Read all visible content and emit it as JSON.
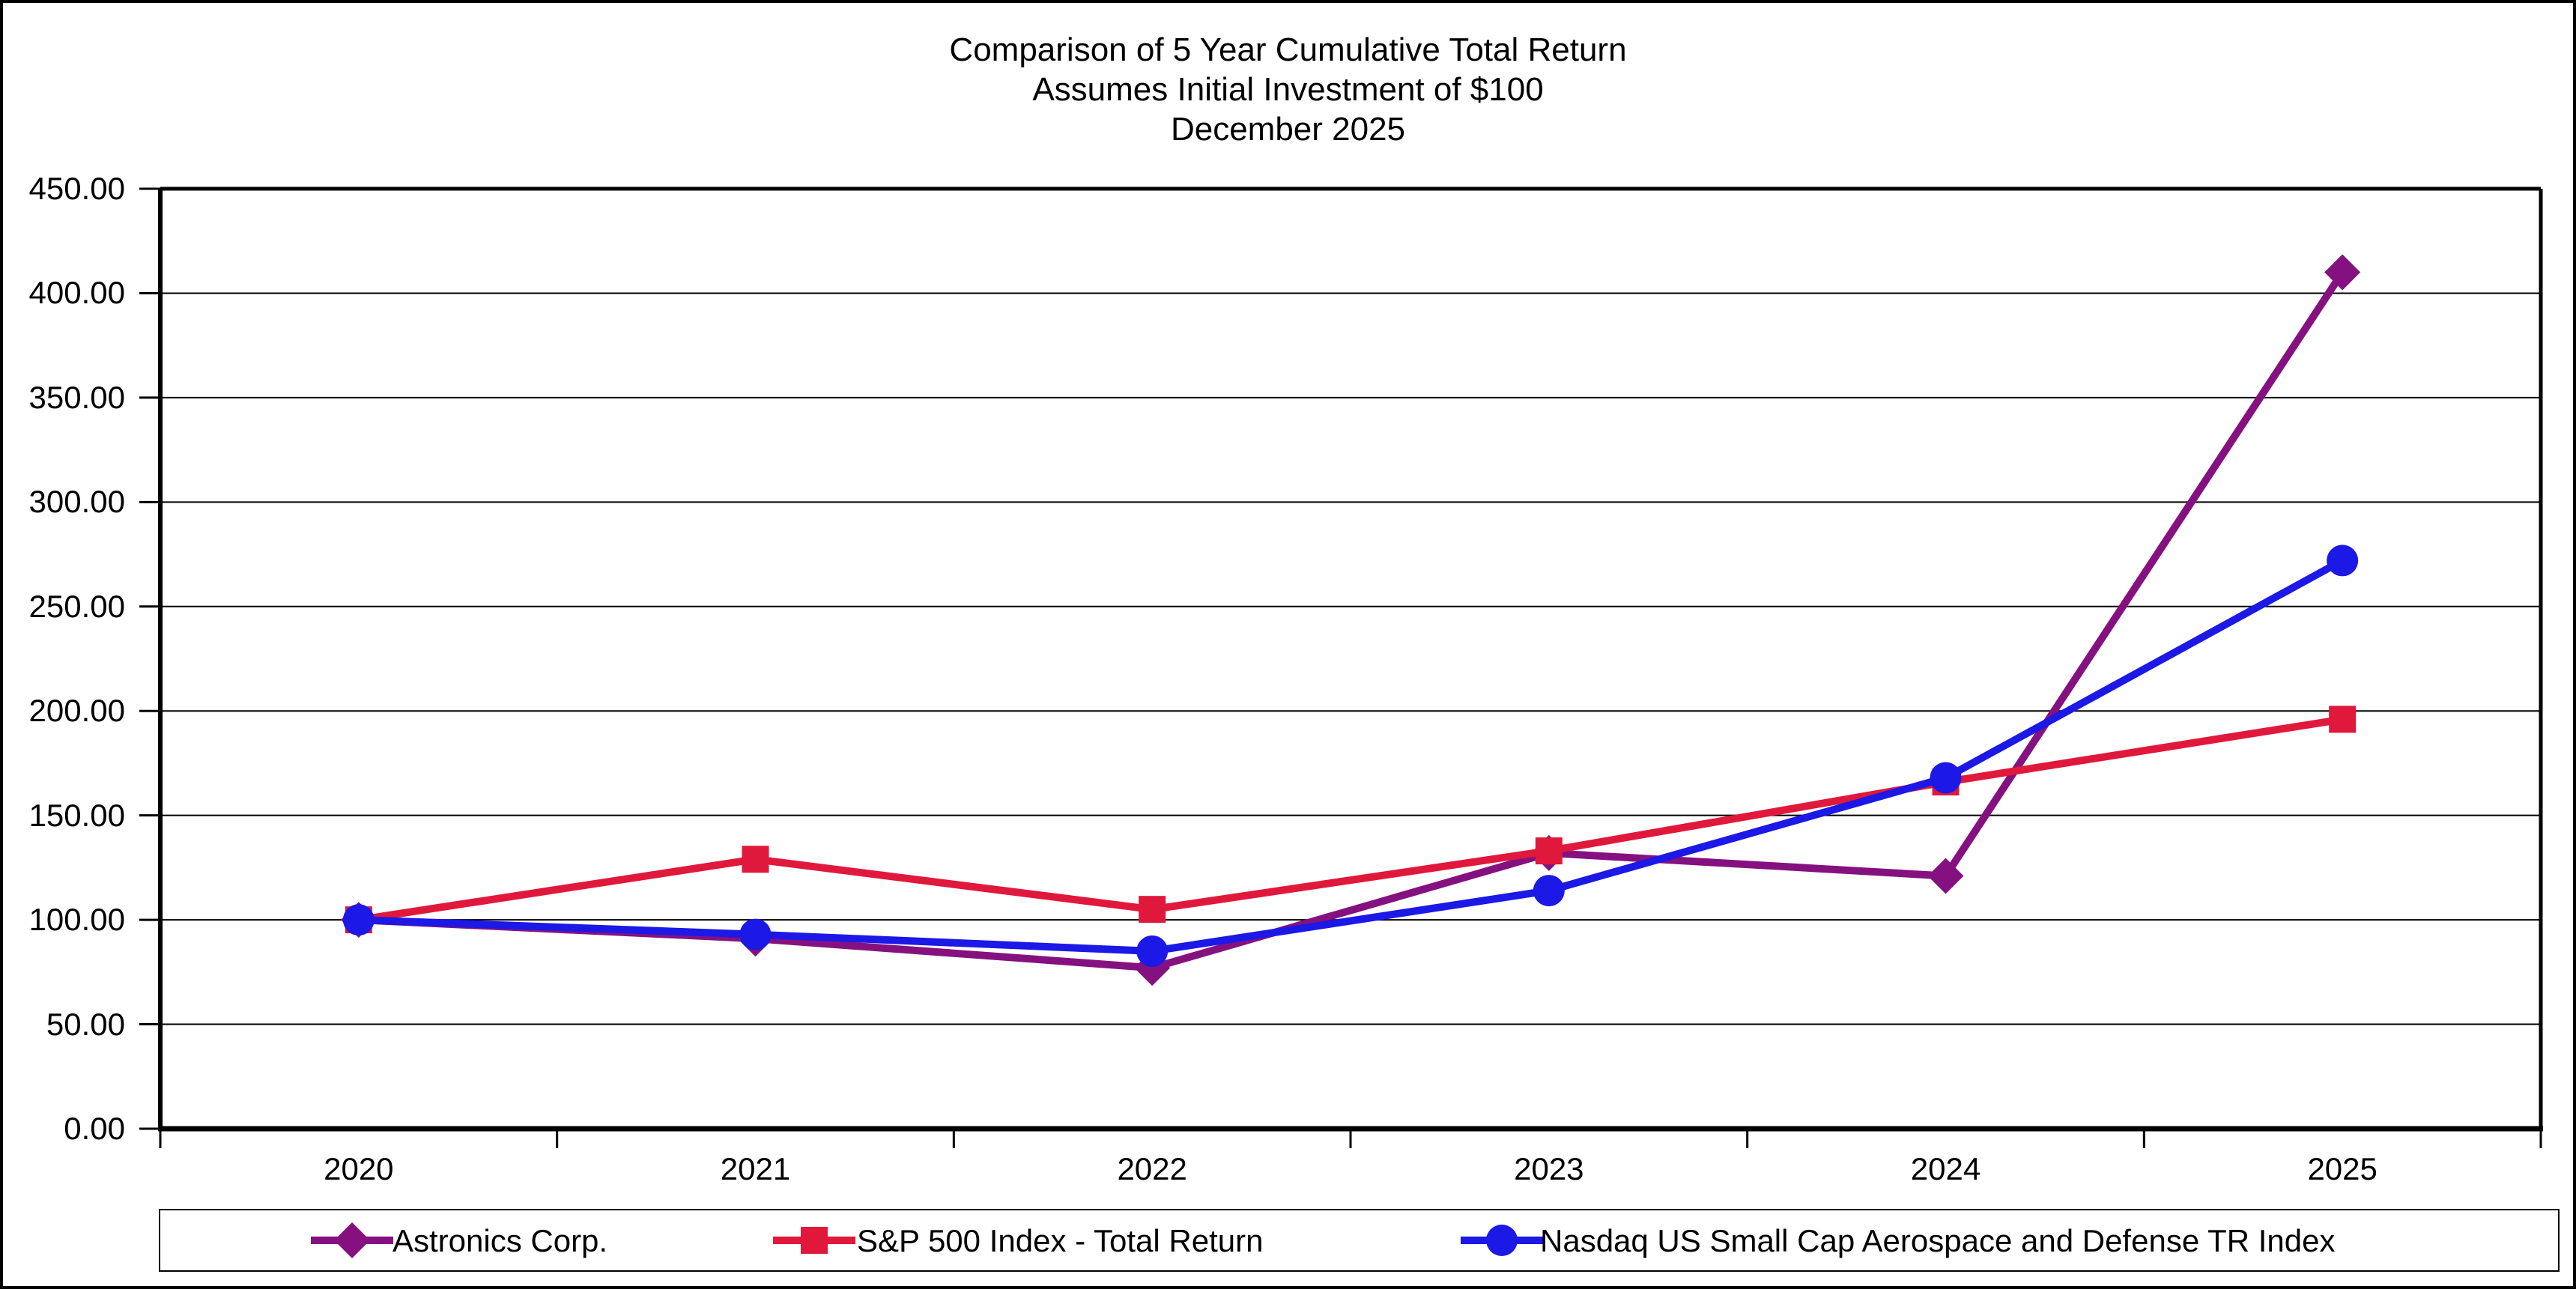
{
  "chart_data": {
    "type": "line",
    "title_lines": [
      "Comparison of 5 Year Cumulative Total Return",
      "Assumes Initial Investment of $100",
      "December 2025"
    ],
    "x_categories": [
      "2020",
      "2021",
      "2022",
      "2023",
      "2024",
      "2025"
    ],
    "series": [
      {
        "name": "Astronics Corp.",
        "marker": "diamond",
        "color": "#851180",
        "values": [
          100.0,
          91.0,
          77.0,
          132.0,
          121.0,
          410.0
        ]
      },
      {
        "name": "S&P 500 Index - Total Return",
        "marker": "square",
        "color": "#E0193C",
        "values": [
          100.0,
          129.0,
          105.0,
          133.0,
          166.0,
          196.0
        ]
      },
      {
        "name": "Nasdaq US Small Cap Aerospace and Defense TR Index",
        "marker": "circle",
        "color": "#1C18E6",
        "values": [
          100.0,
          93.0,
          85.0,
          114.0,
          168.0,
          272.0
        ]
      }
    ],
    "y_axis": {
      "min": 0,
      "max": 450,
      "step": 50,
      "tick_labels": [
        "450.00",
        "400.00",
        "350.00",
        "300.00",
        "250.00",
        "200.00",
        "150.00",
        "100.00",
        "50.00",
        "0.00"
      ]
    },
    "grid": "horizontal",
    "legend_position": "bottom"
  }
}
